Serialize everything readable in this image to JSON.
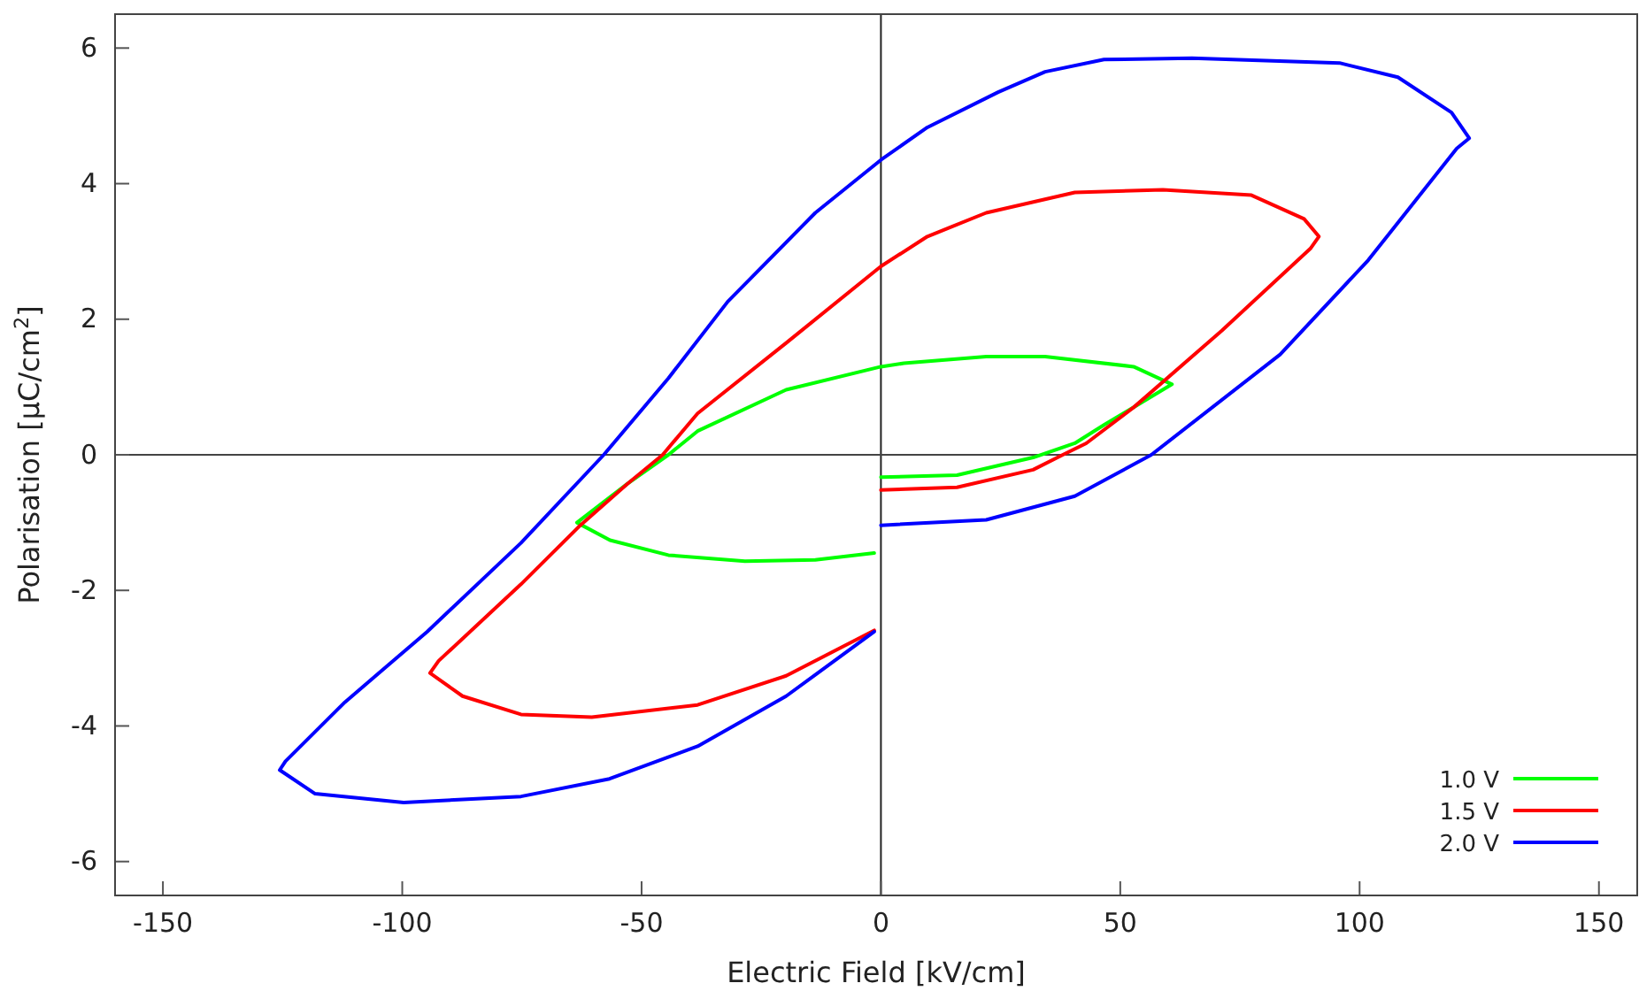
{
  "chart_data": {
    "type": "line",
    "xlabel": "Electric Field [kV/cm]",
    "ylabel": "Polarisation [μC/cm$^{2}$]",
    "xlim": [
      -160,
      158
    ],
    "ylim": [
      -6.5,
      6.5
    ],
    "xticks": [
      -150,
      -100,
      -50,
      0,
      50,
      100,
      150
    ],
    "yticks": [
      -6,
      -4,
      -2,
      0,
      2,
      4,
      6
    ],
    "grid": false,
    "legend": "bottom right",
    "marker": "none",
    "line_style": "solid",
    "ref_lines": [
      {
        "axis": "x",
        "value": 0,
        "color": "#222222"
      },
      {
        "axis": "y",
        "value": 0,
        "color": "#444444"
      }
    ],
    "series": [
      {
        "name": "1.0 V",
        "color": "#00ff00",
        "x": [
          0,
          15.9,
          31.8,
          40.5,
          46.6,
          60.8,
          52.8,
          34.3,
          22,
          4.8,
          0,
          -19.8,
          -38.3,
          -44.4,
          -53,
          -63.5,
          -56.6,
          -44.4,
          -28.4,
          -13.7,
          -1.4
        ],
        "values": [
          -0.33,
          -0.3,
          -0.04,
          0.17,
          0.44,
          1.04,
          1.3,
          1.45,
          1.45,
          1.35,
          1.3,
          0.96,
          0.35,
          0,
          -0.43,
          -1,
          -1.26,
          -1.48,
          -1.57,
          -1.55,
          -1.45
        ]
      },
      {
        "name": "1.5 V",
        "color": "#ff0000",
        "x": [
          0,
          15.9,
          31.8,
          38,
          42.9,
          52.8,
          71.2,
          89.7,
          91.5,
          88.4,
          77.4,
          58.9,
          40.5,
          22,
          9.7,
          0,
          -19.8,
          -38.3,
          -45.6,
          -53,
          -62.8,
          -75.2,
          -92.4,
          -94.2,
          -87.4,
          -75.2,
          -60.4,
          -38.3,
          -19.8,
          -1.4
        ],
        "values": [
          -0.52,
          -0.48,
          -0.22,
          0,
          0.17,
          0.7,
          1.83,
          3.04,
          3.22,
          3.48,
          3.83,
          3.91,
          3.87,
          3.57,
          3.22,
          2.78,
          1.65,
          0.61,
          0,
          -0.43,
          -1.04,
          -1.91,
          -3.04,
          -3.22,
          -3.56,
          -3.83,
          -3.87,
          -3.69,
          -3.26,
          -2.59
        ]
      },
      {
        "name": "2.0 V",
        "color": "#0000ff",
        "x": [
          0,
          22,
          40.5,
          56.5,
          83.4,
          101.8,
          120.3,
          122.9,
          119.2,
          108,
          95.8,
          65,
          46.6,
          34.3,
          24.5,
          9.7,
          0,
          -13.7,
          -32,
          -44.4,
          -57.9,
          -75.2,
          -94.8,
          -112,
          -124.4,
          -125.6,
          -118.2,
          -99.7,
          -75.2,
          -56.7,
          -38.3,
          -19.8,
          -1.4
        ],
        "values": [
          -1.04,
          -0.96,
          -0.61,
          0,
          1.48,
          2.87,
          4.52,
          4.67,
          5.05,
          5.57,
          5.78,
          5.85,
          5.83,
          5.65,
          5.35,
          4.83,
          4.35,
          3.57,
          2.26,
          1.13,
          0,
          -1.3,
          -2.61,
          -3.65,
          -4.52,
          -4.65,
          -5,
          -5.13,
          -5.04,
          -4.78,
          -4.3,
          -3.56,
          -2.61
        ]
      }
    ]
  }
}
